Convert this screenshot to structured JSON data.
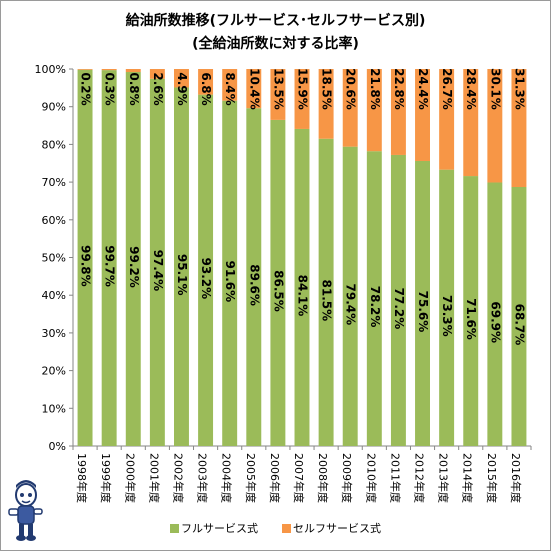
{
  "chart_data": {
    "type": "bar",
    "stacked": true,
    "title": "給油所数推移(フルサービス･セルフサービス別)",
    "subtitle": "(全給油所数に対する比率)",
    "categories": [
      "1998年度",
      "1999年度",
      "2000年度",
      "2001年度",
      "2002年度",
      "2003年度",
      "2004年度",
      "2005年度",
      "2006年度",
      "2007年度",
      "2008年度",
      "2009年度",
      "2010年度",
      "2011年度",
      "2012年度",
      "2013年度",
      "2014年度",
      "2015年度",
      "2016年度"
    ],
    "series": [
      {
        "name": "フルサービス式",
        "color": "#9bbb59",
        "values": [
          99.8,
          99.7,
          99.2,
          97.4,
          95.1,
          93.2,
          91.6,
          89.6,
          86.5,
          84.1,
          81.5,
          79.4,
          78.2,
          77.2,
          75.6,
          73.3,
          71.6,
          69.9,
          68.7
        ],
        "labels": [
          "99.8%",
          "99.7%",
          "99.2%",
          "97.4%",
          "95.1%",
          "93.2%",
          "91.6%",
          "89.6%",
          "86.5%",
          "84.1%",
          "81.5%",
          "79.4%",
          "78.2%",
          "77.2%",
          "75.6%",
          "73.3%",
          "71.6%",
          "69.9%",
          "68.7%"
        ]
      },
      {
        "name": "セルフサービス式",
        "color": "#f79646",
        "values": [
          0.2,
          0.3,
          0.8,
          2.6,
          4.9,
          6.8,
          8.4,
          10.4,
          13.5,
          15.9,
          18.5,
          20.6,
          21.8,
          22.8,
          24.4,
          26.7,
          28.4,
          30.1,
          31.3
        ],
        "labels": [
          "0.2%",
          "0.3%",
          "0.8%",
          "2.6%",
          "4.9%",
          "6.8%",
          "8.4%",
          "10.4%",
          "13.5%",
          "15.9%",
          "18.5%",
          "20.6%",
          "21.8%",
          "22.8%",
          "24.4%",
          "26.7%",
          "28.4%",
          "30.1%",
          "31.3%"
        ]
      }
    ],
    "yticks": [
      "0%",
      "10%",
      "20%",
      "30%",
      "40%",
      "50%",
      "60%",
      "70%",
      "80%",
      "90%",
      "100%"
    ],
    "ylim": [
      0,
      100
    ],
    "grid": false,
    "legend": "bottom"
  },
  "mascot_icon": "mascot-character-icon"
}
